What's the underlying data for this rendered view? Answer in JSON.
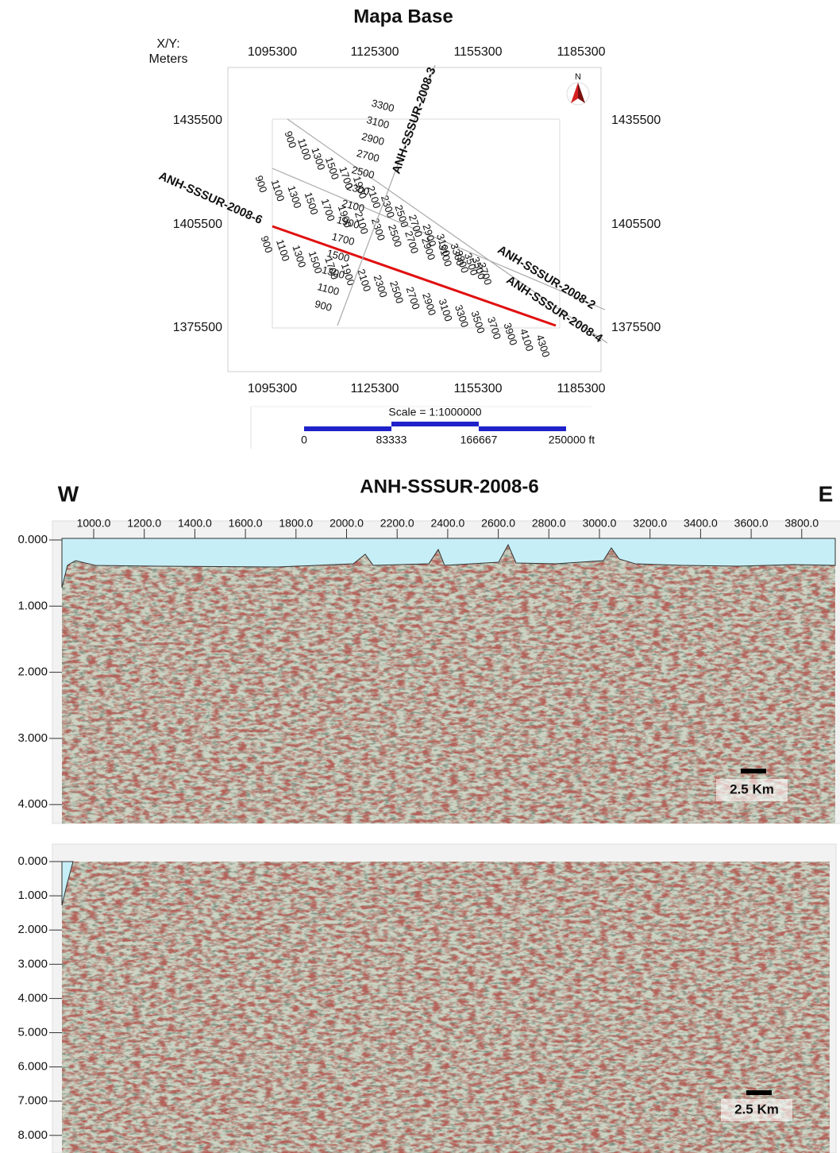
{
  "map": {
    "title": "Mapa Base",
    "xy_label": "X/Y:",
    "units": "Meters",
    "x_ticks": [
      "1095300",
      "1125300",
      "1155300",
      "1185300"
    ],
    "y_ticks": [
      "1435500",
      "1405500",
      "1375500"
    ],
    "north": "N",
    "lines": [
      {
        "name": "ANH-SSSUR-2008-6",
        "shotpoints": [
          "900",
          "1100",
          "1300",
          "1500",
          "1700",
          "1900",
          "2100",
          "2300",
          "2500",
          "2700",
          "2900",
          "3100",
          "3300",
          "3500",
          "3700",
          "3900",
          "4100",
          "4300"
        ]
      },
      {
        "name": "ANH-SSSUR-2008-2",
        "shotpoints": [
          "900",
          "1100",
          "1300",
          "1500",
          "1700",
          "1900",
          "2100",
          "2300",
          "2500",
          "2700",
          "2900",
          "3100",
          "3300",
          "3500"
        ]
      },
      {
        "name": "ANH-SSSUR-2008-4",
        "shotpoints": [
          "900",
          "1100",
          "1300",
          "1500",
          "1700",
          "1900",
          "2100",
          "2300",
          "2500",
          "2700",
          "2900",
          "3100",
          "3300",
          "3500",
          "3700"
        ]
      },
      {
        "name": "ANH-SSSUR-2008-3",
        "shotpoints": [
          "900",
          "1100",
          "1300",
          "1500",
          "1700",
          "1900",
          "2100",
          "2300",
          "2500",
          "2700",
          "2900",
          "3100",
          "3300"
        ]
      }
    ],
    "scale": {
      "label": "Scale = 1:1000000",
      "ticks": [
        "0",
        "83333",
        "166667",
        "250000 ft"
      ]
    }
  },
  "sections": [
    {
      "west": "W",
      "title": "ANH-SSSUR-2008-6",
      "east": "E",
      "x_ticks": [
        "1000.0",
        "1200.0",
        "1400.0",
        "1600.0",
        "1800.0",
        "2000.0",
        "2200.0",
        "2400.0",
        "2600.0",
        "2800.0",
        "3000.0",
        "3200.0",
        "3400.0",
        "3600.0",
        "3800.0"
      ],
      "y_ticks": [
        "0.000",
        "1.000",
        "2.000",
        "3.000",
        "4.000"
      ],
      "scale_label": "2.5 Km"
    },
    {
      "y_ticks": [
        "0.000",
        "1.000",
        "2.000",
        "3.000",
        "4.000",
        "5.000",
        "6.000",
        "7.000",
        "8.000"
      ],
      "scale_label": "2.5 Km"
    }
  ]
}
